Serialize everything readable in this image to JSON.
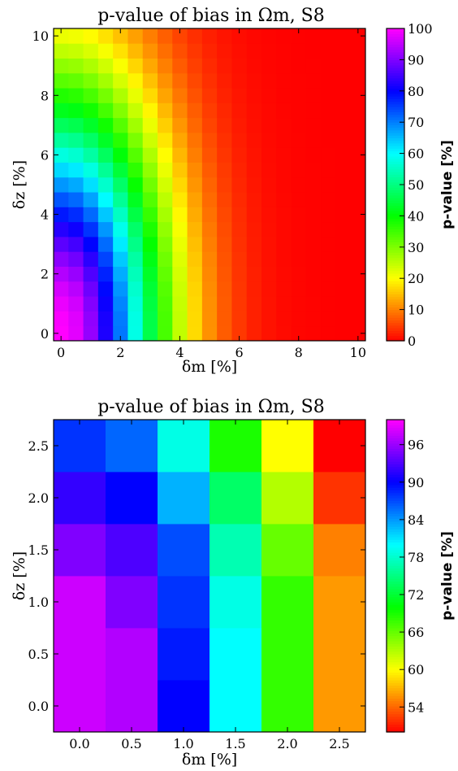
{
  "chart_data": [
    {
      "type": "heatmap",
      "title": "p-value of bias in Ωm, S8",
      "xlabel": "δm [%]",
      "ylabel": "δz [%]",
      "colorbar_label": "p-value [%]",
      "colormap": "gist_rainbow",
      "x": [
        0.0,
        0.5,
        1.0,
        1.5,
        2.0,
        2.5,
        3.0,
        3.5,
        4.0,
        4.5,
        5.0,
        5.5,
        6.0,
        6.5,
        7.0,
        7.5,
        8.0,
        8.5,
        9.0,
        9.5,
        10.0
      ],
      "y": [
        0.0,
        0.5,
        1.0,
        1.5,
        2.0,
        2.5,
        3.0,
        3.5,
        4.0,
        4.5,
        5.0,
        5.5,
        6.0,
        6.5,
        7.0,
        7.5,
        8.0,
        8.5,
        9.0,
        9.5,
        10.0
      ],
      "value_model": "p = 100·exp(-(δm² + (0.42·δz)²)/11.5)  (estimated)",
      "xlim": [
        -0.25,
        10.25
      ],
      "ylim": [
        -0.25,
        10.25
      ],
      "xticks": [
        "0",
        "2",
        "4",
        "6",
        "8",
        "10"
      ],
      "yticks": [
        "0",
        "2",
        "4",
        "6",
        "8",
        "10"
      ],
      "clim": [
        0,
        100
      ],
      "cbticks": [
        "0",
        "10",
        "20",
        "30",
        "40",
        "50",
        "60",
        "70",
        "80",
        "90",
        "100"
      ]
    },
    {
      "type": "heatmap",
      "title": "p-value of bias in Ωm, S8",
      "xlabel": "δm [%]",
      "ylabel": "δz [%]",
      "colorbar_label": "p-value [%]",
      "colormap": "gist_rainbow",
      "x": [
        0.0,
        0.5,
        1.0,
        1.5,
        2.0,
        2.5
      ],
      "y": [
        0.0,
        0.5,
        1.0,
        1.5,
        2.0,
        2.5
      ],
      "values": [
        [
          98,
          97,
          90,
          80,
          68,
          56
        ],
        [
          98,
          97,
          89,
          80,
          68,
          56
        ],
        [
          98,
          95,
          88,
          79,
          68,
          56
        ],
        [
          95,
          93,
          87,
          77,
          66,
          55
        ],
        [
          92,
          90,
          83,
          74,
          63,
          52
        ],
        [
          88,
          86,
          79,
          69,
          60,
          50
        ]
      ],
      "xlim": [
        -0.25,
        2.75
      ],
      "ylim": [
        -0.25,
        2.75
      ],
      "xticks": [
        "0.0",
        "0.5",
        "1.0",
        "1.5",
        "2.0",
        "2.5"
      ],
      "yticks": [
        "0.0",
        "0.5",
        "1.0",
        "1.5",
        "2.0",
        "2.5"
      ],
      "clim": [
        50,
        100
      ],
      "cbticks": [
        "54",
        "60",
        "66",
        "72",
        "78",
        "84",
        "90",
        "96"
      ]
    }
  ]
}
